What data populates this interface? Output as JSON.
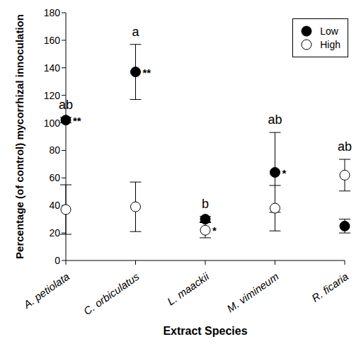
{
  "chart_data": {
    "type": "scatter",
    "x_label": "Extract Species",
    "y_label": "Percentage (of control) mycorrhizal innoculation",
    "categories": [
      "A. petiolata",
      "C. orbiculatus",
      "L. maackii",
      "M. vimineum",
      "R. ficaria"
    ],
    "series": [
      {
        "name": "Low",
        "color": "#000000",
        "marker": "circle",
        "values": [
          102,
          137,
          30,
          64,
          25
        ],
        "errors": [
          2,
          20,
          2,
          29,
          5
        ],
        "annotations": [
          "**",
          "**",
          null,
          "*",
          null
        ]
      },
      {
        "name": "High",
        "color": "#000000",
        "marker": "open circle",
        "values": [
          37,
          39,
          22,
          38,
          62
        ],
        "errors": [
          18,
          18,
          5.5,
          16.5,
          11.5
        ],
        "annotations": [
          null,
          null,
          "*",
          null,
          null
        ]
      }
    ],
    "group_letters": [
      "ab",
      "a",
      "b",
      "ab",
      "ab"
    ],
    "ylim": [
      0,
      180
    ],
    "yticks": [
      0,
      20,
      40,
      60,
      80,
      100,
      120,
      140,
      160,
      180
    ],
    "legend": "upper right",
    "grid": false
  }
}
